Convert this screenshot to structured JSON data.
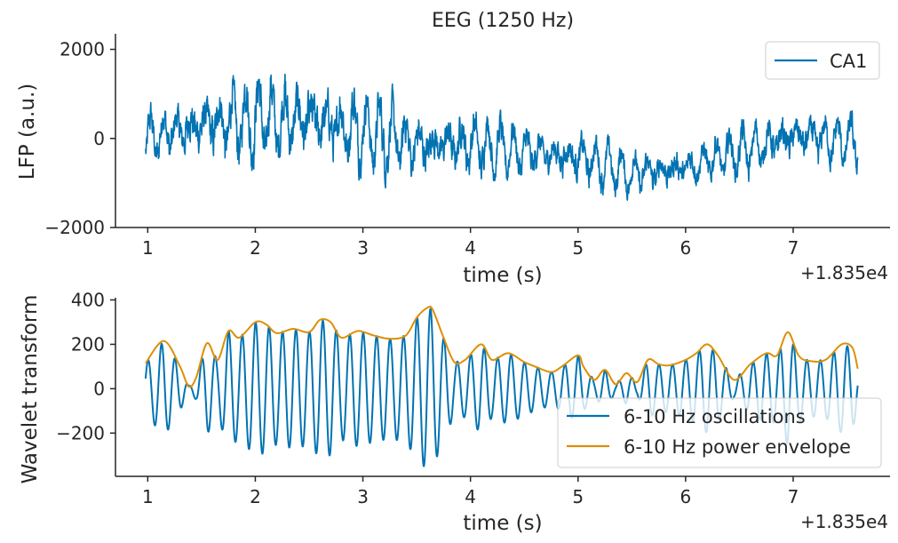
{
  "chart_data": [
    {
      "type": "line",
      "title": "EEG (1250 Hz)",
      "xlabel": "time (s)",
      "ylabel": "LFP (a.u.)",
      "x_offset_label": "+1.835e4",
      "xlim": [
        0.7,
        7.9
      ],
      "ylim": [
        -2000,
        2350
      ],
      "xticks": [
        1,
        2,
        3,
        4,
        5,
        6,
        7
      ],
      "yticks": [
        -2000,
        0,
        2000
      ],
      "ytick_labels": [
        "−2000",
        "0",
        "2000"
      ],
      "legend": {
        "position": "top-right",
        "entries": [
          "CA1"
        ]
      },
      "series": [
        {
          "name": "CA1",
          "color": "#0173b2",
          "x_range": [
            0.98,
            7.6
          ],
          "trend": [
            [
              1.0,
              0
            ],
            [
              1.5,
              300
            ],
            [
              2.0,
              450
            ],
            [
              2.5,
              400
            ],
            [
              3.0,
              200
            ],
            [
              3.5,
              -150
            ],
            [
              4.0,
              -100
            ],
            [
              4.5,
              -300
            ],
            [
              5.0,
              -400
            ],
            [
              5.5,
              -800
            ],
            [
              6.0,
              -650
            ],
            [
              6.5,
              -300
            ],
            [
              7.0,
              50
            ],
            [
              7.6,
              -100
            ]
          ],
          "amplitude": [
            [
              1.0,
              500
            ],
            [
              2.0,
              800
            ],
            [
              3.0,
              700
            ],
            [
              4.0,
              550
            ],
            [
              5.0,
              450
            ],
            [
              6.0,
              400
            ],
            [
              7.0,
              500
            ],
            [
              7.6,
              450
            ]
          ]
        }
      ]
    },
    {
      "type": "line",
      "xlabel": "time (s)",
      "ylabel": "Wavelet transform",
      "x_offset_label": "+1.835e4",
      "xlim": [
        0.7,
        7.9
      ],
      "ylim": [
        -395,
        410
      ],
      "xticks": [
        1,
        2,
        3,
        4,
        5,
        6,
        7
      ],
      "yticks": [
        -200,
        0,
        200,
        400
      ],
      "ytick_labels": [
        "−200",
        "0",
        "200",
        "400"
      ],
      "legend": {
        "position": "bottom-right",
        "entries": [
          "6-10 Hz oscillations",
          "6-10 Hz power envelope"
        ]
      },
      "series": [
        {
          "name": "6-10 Hz oscillations",
          "color": "#0173b2",
          "x_range": [
            0.98,
            7.6
          ],
          "frequency_hz": 8
        },
        {
          "name": "6-10 Hz power envelope",
          "color": "#de8f05",
          "x": [
            0.98,
            1.15,
            1.3,
            1.38,
            1.45,
            1.55,
            1.65,
            1.75,
            1.85,
            2.0,
            2.1,
            2.2,
            2.35,
            2.5,
            2.6,
            2.7,
            2.8,
            2.95,
            3.1,
            3.25,
            3.4,
            3.5,
            3.6,
            3.65,
            3.75,
            3.85,
            3.95,
            4.1,
            4.2,
            4.35,
            4.5,
            4.6,
            4.75,
            4.85,
            5.0,
            5.05,
            5.15,
            5.25,
            5.35,
            5.45,
            5.55,
            5.65,
            5.75,
            5.85,
            6.0,
            6.1,
            6.2,
            6.3,
            6.45,
            6.6,
            6.75,
            6.85,
            6.95,
            7.05,
            7.15,
            7.3,
            7.45,
            7.55,
            7.6
          ],
          "y": [
            115,
            215,
            100,
            10,
            50,
            205,
            130,
            260,
            230,
            300,
            290,
            250,
            270,
            255,
            310,
            300,
            230,
            260,
            240,
            225,
            240,
            320,
            365,
            355,
            230,
            120,
            130,
            200,
            130,
            160,
            120,
            100,
            75,
            100,
            150,
            100,
            40,
            85,
            20,
            70,
            30,
            130,
            110,
            105,
            130,
            160,
            200,
            150,
            40,
            110,
            160,
            150,
            255,
            150,
            125,
            130,
            200,
            185,
            90
          ]
        }
      ]
    }
  ]
}
